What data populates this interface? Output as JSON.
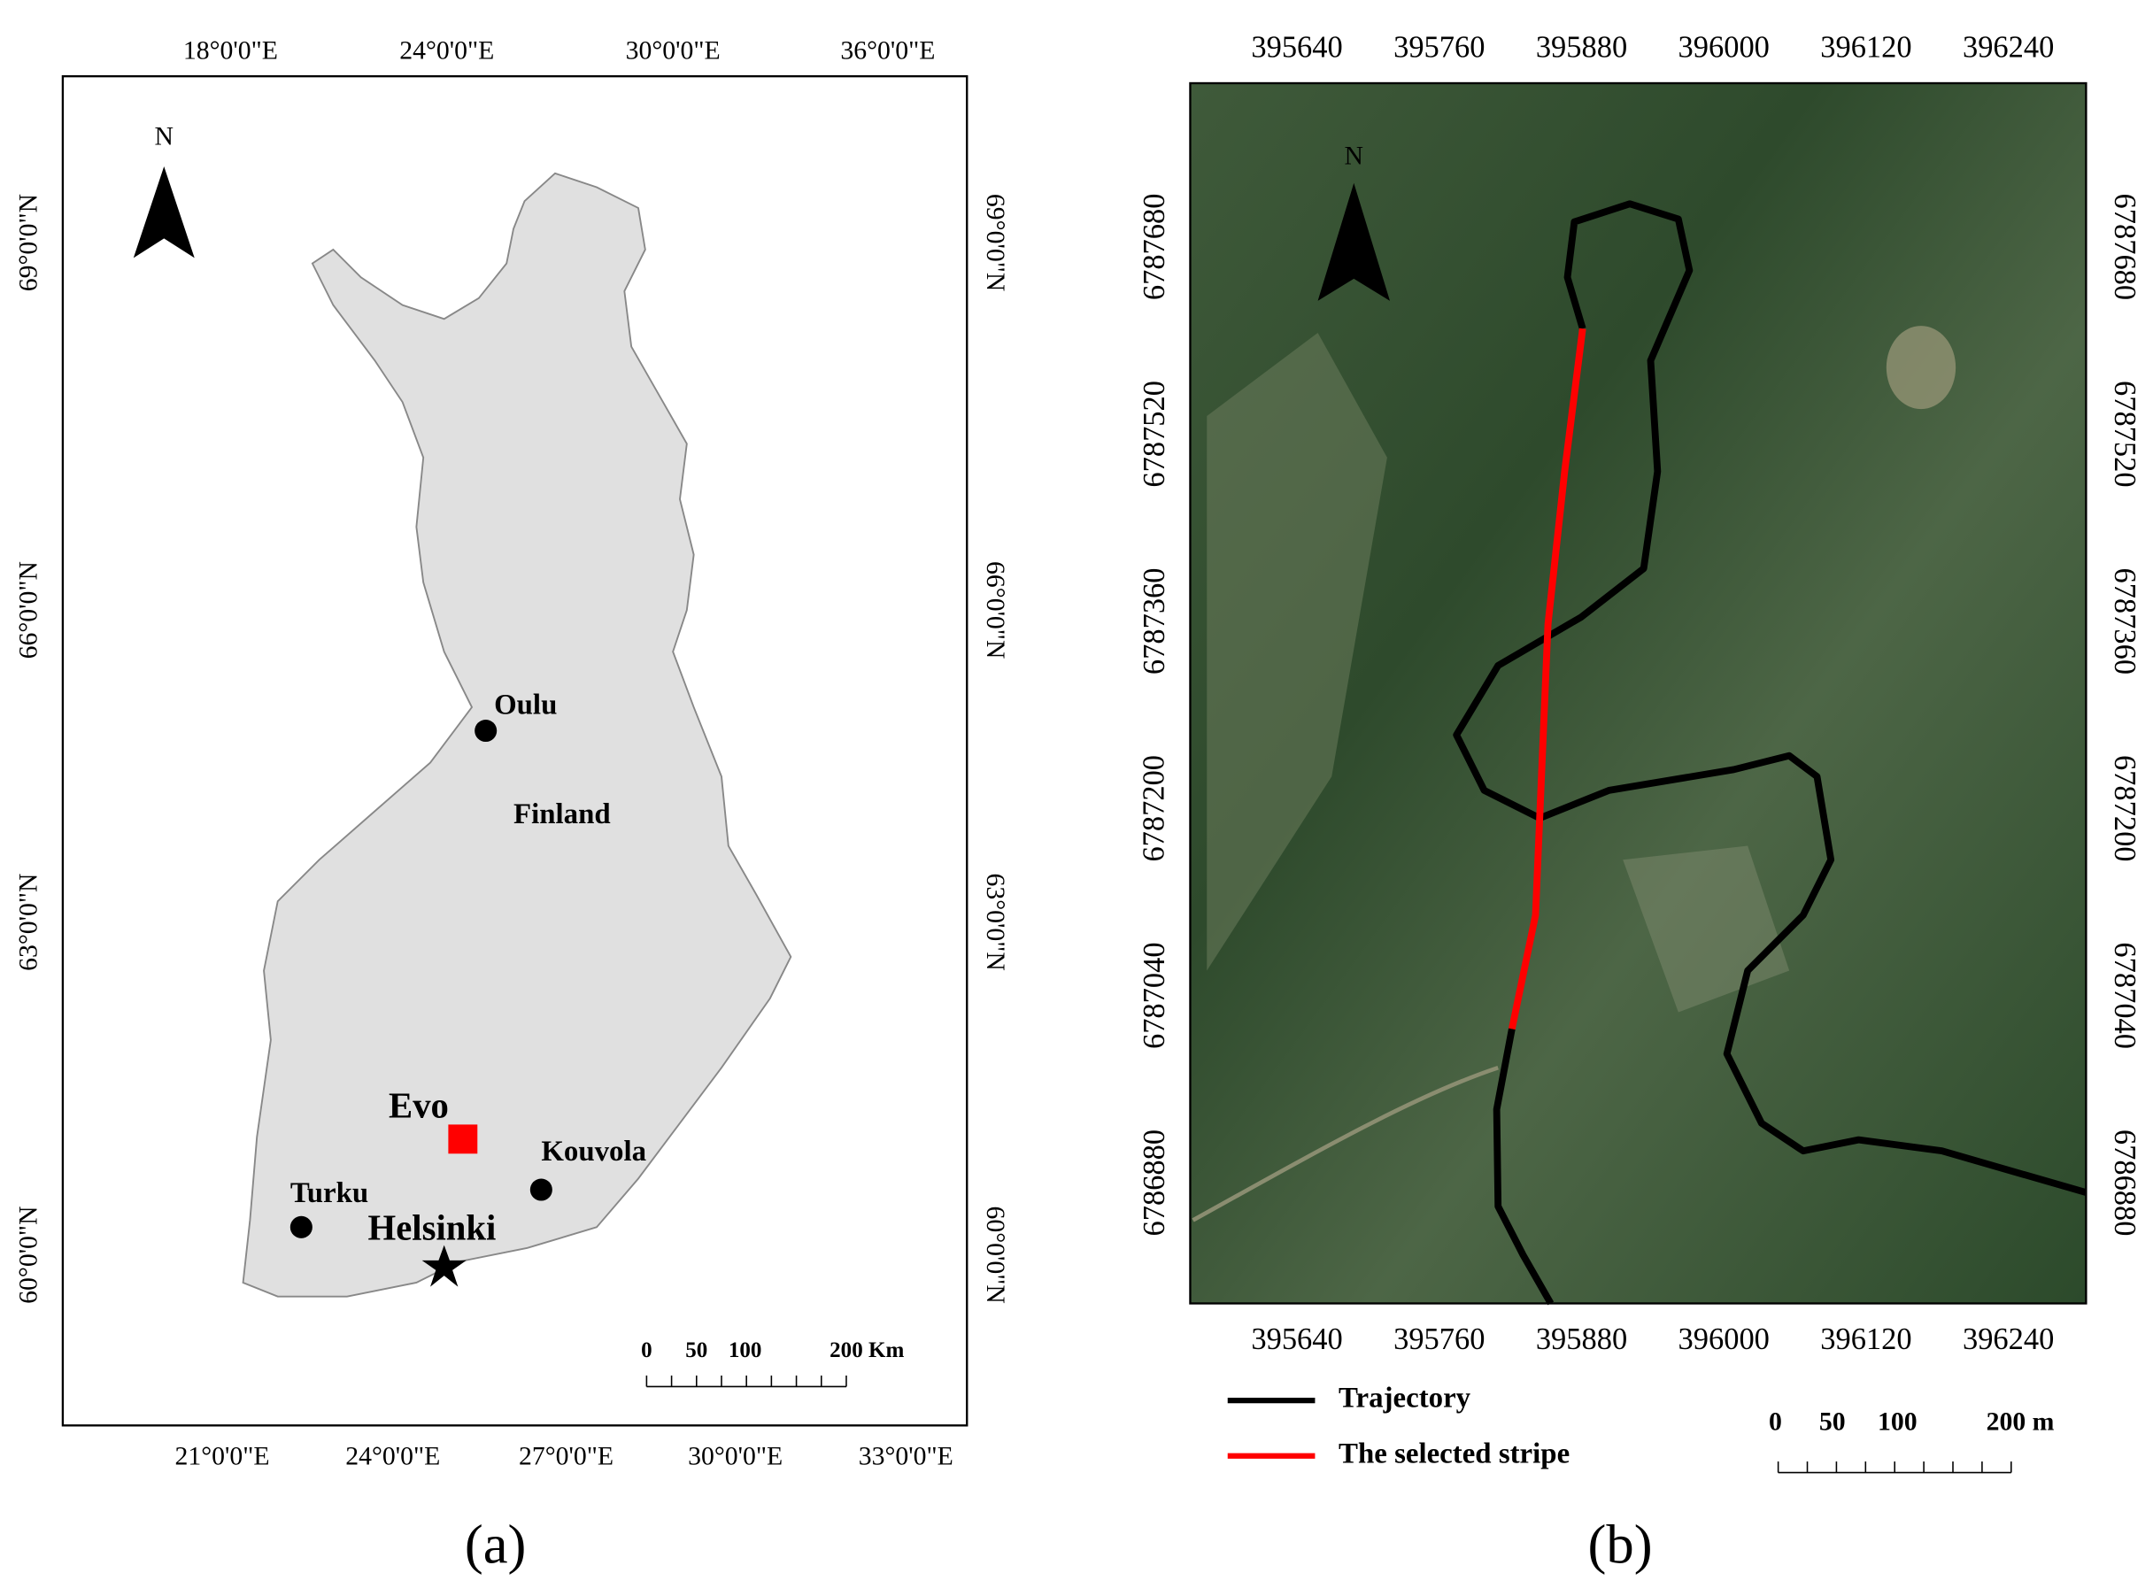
{
  "panel_a": {
    "top_ticks": [
      "18°0'0\"E",
      "24°0'0\"E",
      "30°0'0\"E",
      "36°0'0\"E"
    ],
    "bottom_ticks": [
      "21°0'0\"E",
      "24°0'0\"E",
      "27°0'0\"E",
      "30°0'0\"E",
      "33°0'0\"E"
    ],
    "left_ticks": [
      "69°0'0\"N",
      "66°0'0\"N",
      "63°0'0\"N",
      "60°0'0\"N"
    ],
    "right_ticks": [
      "69°0'0\"N",
      "66°0'0\"N",
      "63°0'0\"N",
      "60°0'0\"N"
    ],
    "north": "N",
    "country": "Finland",
    "places": [
      "Oulu",
      "Evo",
      "Kouvola",
      "Turku",
      "Helsinki"
    ],
    "scale": [
      "0",
      "50",
      "100",
      "200 Km"
    ],
    "caption": "(a)"
  },
  "panel_b": {
    "top_ticks": [
      395640,
      395760,
      395880,
      396000,
      396120,
      396240
    ],
    "bottom_ticks": [
      395640,
      395760,
      395880,
      396000,
      396120,
      396240
    ],
    "left_ticks": [
      6787680,
      6787520,
      6787360,
      6787200,
      6787040,
      6786880
    ],
    "right_ticks": [
      6787680,
      6787520,
      6787360,
      6787200,
      6787040,
      6786880
    ],
    "north": "N",
    "legend": [
      "Trajectory",
      "The selected stripe"
    ],
    "scale": [
      "0",
      "50",
      "100",
      "200 m"
    ],
    "caption": "(b)"
  }
}
